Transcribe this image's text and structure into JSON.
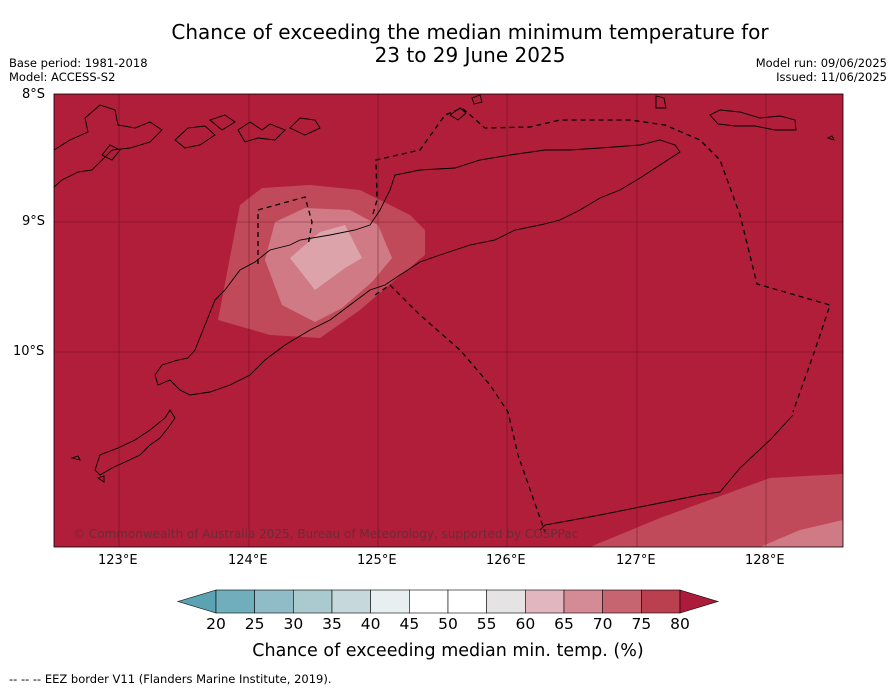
{
  "title_line1": "Chance of exceeding the median minimum temperature for",
  "title_line2": "23 to 29 June 2025",
  "base_period": "Base period: 1981-2018",
  "model": "Model: ACCESS-S2",
  "model_run": "Model run: 09/06/2025",
  "issued": "Issued: 11/06/2025",
  "lat_labels": [
    "8°S",
    "9°S",
    "10°S"
  ],
  "lon_labels": [
    "123°E",
    "124°E",
    "125°E",
    "126°E",
    "127°E",
    "128°E"
  ],
  "copyright": "© Commonwealth of Australia 2025, Bureau of Meteorology, supported by COSPPac",
  "colorbar": {
    "ticks": [
      "20",
      "25",
      "30",
      "35",
      "40",
      "45",
      "50",
      "55",
      "60",
      "65",
      "70",
      "75",
      "80"
    ],
    "colors": [
      "#5ba3b2",
      "#71aebc",
      "#8fbcc6",
      "#abcacf",
      "#c7d8dc",
      "#e8eff1",
      "#ffffff",
      "#ffffff",
      "#e5e3e4",
      "#e2b6bf",
      "#d48b96",
      "#c66470",
      "#bb404f",
      "#ac1b3a"
    ],
    "label": "Chance of exceeding median min. temp. (%)"
  },
  "footer": "--  --  -- EEZ border V11 (Flanders Marine Institute, 2019).",
  "colors": {
    "p80": "#b01e3a",
    "p75": "#c14a5a",
    "p70": "#d07a85",
    "p65": "#dda3ab"
  }
}
